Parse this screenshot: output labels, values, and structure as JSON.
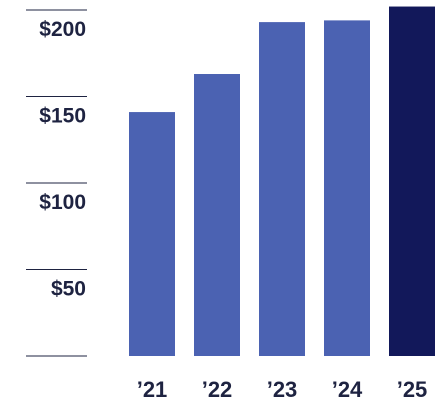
{
  "chart_data": {
    "type": "bar",
    "title": "",
    "xlabel": "",
    "ylabel": "",
    "categories": [
      "’21",
      "’22",
      "’23",
      "’24",
      "’25"
    ],
    "values": [
      141,
      163,
      193,
      194,
      202
    ],
    "ylim": [
      0,
      200
    ],
    "yticks": [
      0,
      50,
      100,
      150,
      200
    ],
    "ytick_labels": [
      "",
      "$50",
      "$100",
      "$150",
      "$200"
    ],
    "grid": false,
    "legend": "none",
    "colors": {
      "bar": "#4b62b2",
      "highlight_bar": "#12185a",
      "text": "#1e2341",
      "axis_line": "#1e2341"
    },
    "highlight_index": 4
  }
}
